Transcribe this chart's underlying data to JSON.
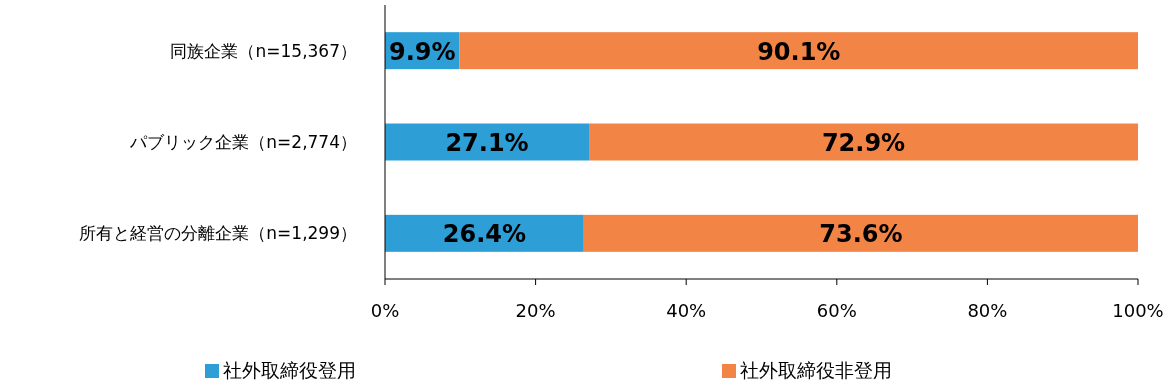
{
  "chart_data": {
    "type": "bar",
    "orientation": "horizontal",
    "stacked": true,
    "categories": [
      "同族企業（n=15,367）",
      "パブリック企業（n=2,774）",
      "所有と経営の分離企業（n=1,299）"
    ],
    "series": [
      {
        "name": "社外取締役登用",
        "color": "#2e9fd6",
        "values": [
          9.9,
          27.1,
          26.4
        ],
        "value_labels": [
          "9.9%",
          "27.1%",
          "26.4%"
        ]
      },
      {
        "name": "社外取締役非登用",
        "color": "#f28446",
        "values": [
          90.1,
          72.9,
          73.6
        ],
        "value_labels": [
          "90.1%",
          "72.9%",
          "73.6%"
        ]
      }
    ],
    "xlim": [
      0,
      100
    ],
    "xticks": [
      {
        "value": 0,
        "label": "0%"
      },
      {
        "value": 20,
        "label": "20%"
      },
      {
        "value": 40,
        "label": "40%"
      },
      {
        "value": 60,
        "label": "60%"
      },
      {
        "value": 80,
        "label": "80%"
      },
      {
        "value": 100,
        "label": "100%"
      }
    ],
    "legend": "bottom"
  }
}
